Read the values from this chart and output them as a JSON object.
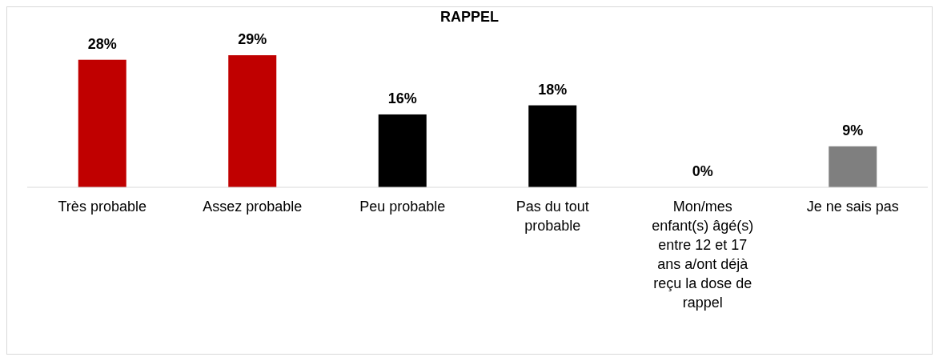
{
  "chart_data": {
    "type": "bar",
    "title": "RAPPEL",
    "categories": [
      "Très probable",
      "Assez probable",
      "Peu probable",
      "Pas du tout probable",
      "Mon/mes enfant(s) âgé(s) entre 12 et 17 ans a/ont déjà reçu la dose de rappel",
      "Je ne sais pas"
    ],
    "values": [
      28,
      29,
      16,
      18,
      0,
      9
    ],
    "colors": [
      "#c00000",
      "#c00000",
      "#000000",
      "#000000",
      "#000000",
      "#7f7f7f"
    ],
    "value_labels": [
      "28%",
      "29%",
      "16%",
      "18%",
      "0%",
      "9%"
    ],
    "grid": false,
    "legend": false
  }
}
